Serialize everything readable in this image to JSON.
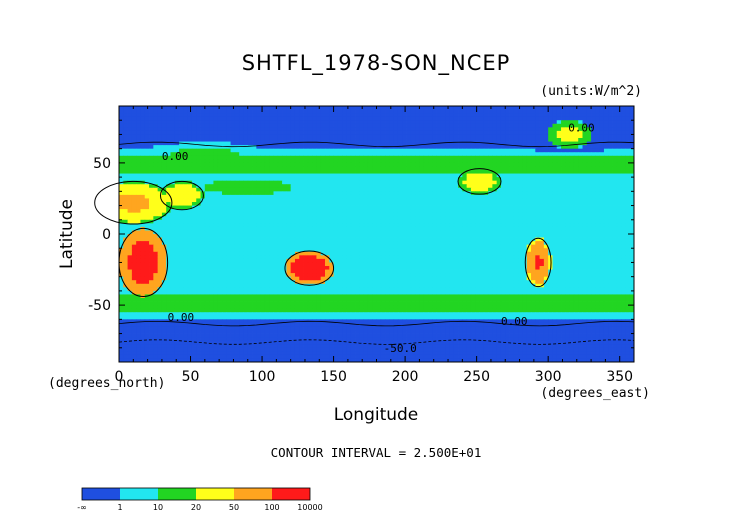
{
  "chart_data": {
    "type": "heatmap",
    "title": "SHTFL_1978-SON_NCEP",
    "units_label": "(units:W/m^2)",
    "xlabel": "Longitude",
    "ylabel": "Latitude",
    "x_unit_label": "(degrees_east)",
    "y_unit_label": "(degrees_north)",
    "xlim": [
      0,
      360
    ],
    "ylim": [
      -90,
      90
    ],
    "x_ticks": [
      0,
      50,
      100,
      150,
      200,
      250,
      300,
      350
    ],
    "y_ticks": [
      50,
      0,
      -50
    ],
    "contour_interval_text": "CONTOUR INTERVAL = 2.500E+01",
    "contour_labels": [
      "0.00",
      "0.00",
      "0.00",
      "0.00",
      "-50.0"
    ],
    "colorbar": {
      "levels": [
        "-∞",
        "1",
        "10",
        "20",
        "50",
        "100",
        "10000"
      ],
      "colors": [
        "#1f4fe0",
        "#22e6f0",
        "#22d522",
        "#ffff1a",
        "#ffa51f",
        "#ff1a1a"
      ]
    },
    "legend_placement": "bottom-left",
    "grid": false
  }
}
